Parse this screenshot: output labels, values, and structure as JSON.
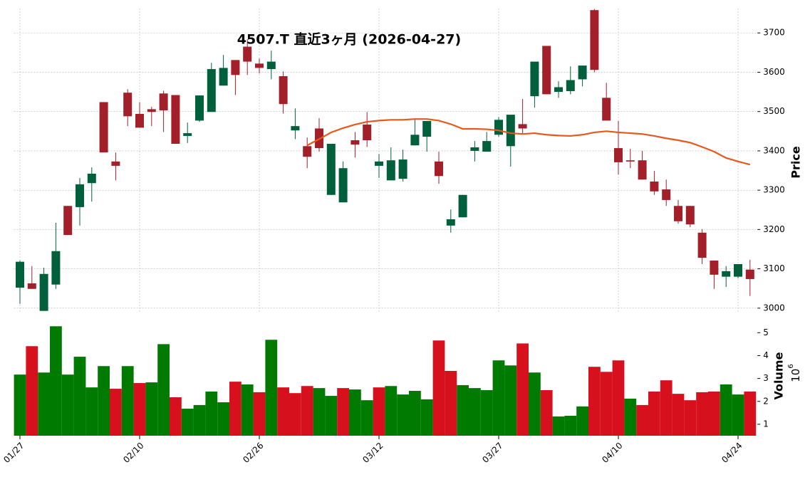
{
  "chart_data": {
    "type": "candlestick",
    "title": "4507.T 直近3ヶ月 (2026-04-27)",
    "categories": [
      "01/27",
      null,
      null,
      null,
      null,
      null,
      null,
      null,
      null,
      null,
      "02/10",
      null,
      null,
      null,
      null,
      null,
      null,
      null,
      null,
      null,
      "02/26",
      null,
      null,
      null,
      null,
      null,
      null,
      null,
      null,
      null,
      "03/12",
      null,
      null,
      null,
      null,
      null,
      null,
      null,
      null,
      null,
      "03/27",
      null,
      null,
      null,
      null,
      null,
      null,
      null,
      null,
      null,
      "04/10",
      null,
      null,
      null,
      null,
      null,
      null,
      null,
      null,
      null,
      "04/24",
      null
    ],
    "open": [
      3052,
      3063,
      2993,
      3060,
      3260,
      3257,
      3318,
      3524,
      3373,
      3548,
      3494,
      3506,
      3546,
      3542,
      3438,
      3477,
      3499,
      3566,
      3631,
      3665,
      3622,
      3608,
      3590,
      3452,
      3412,
      3457,
      3288,
      3269,
      3427,
      3467,
      3362,
      3325,
      3329,
      3414,
      3436,
      3373,
      3210,
      3231,
      3400,
      3398,
      3441,
      3412,
      3468,
      3539,
      3667,
      3550,
      3552,
      3582,
      3758,
      3535,
      3407,
      3376,
      3376,
      3322,
      3302,
      3260,
      3260,
      3192,
      3121,
      3080,
      3080,
      3098
    ],
    "high": [
      3121,
      3107,
      3103,
      3217,
      3260,
      3331,
      3358,
      3524,
      3396,
      3557,
      3524,
      3512,
      3553,
      3542,
      3472,
      3541,
      3624,
      3644,
      3631,
      3684,
      3635,
      3655,
      3602,
      3508,
      3434,
      3483,
      3418,
      3373,
      3448,
      3499,
      3392,
      3409,
      3403,
      3479,
      3476,
      3398,
      3251,
      3288,
      3425,
      3448,
      3486,
      3492,
      3532,
      3627,
      3667,
      3577,
      3615,
      3617,
      3761,
      3573,
      3476,
      3405,
      3400,
      3349,
      3327,
      3275,
      3260,
      3201,
      3121,
      3107,
      3112,
      3123
    ],
    "low": [
      3011,
      3049,
      2993,
      3049,
      3186,
      3210,
      3271,
      3396,
      3325,
      3463,
      3459,
      3463,
      3448,
      3418,
      3420,
      3474,
      3499,
      3566,
      3542,
      3593,
      3597,
      3582,
      3495,
      3430,
      3356,
      3398,
      3288,
      3269,
      3383,
      3410,
      3331,
      3325,
      3322,
      3414,
      3398,
      3316,
      3192,
      3231,
      3373,
      3398,
      3436,
      3360,
      3445,
      3510,
      3544,
      3535,
      3544,
      3564,
      3600,
      3477,
      3340,
      3356,
      3327,
      3288,
      3260,
      3215,
      3206,
      3112,
      3049,
      3054,
      3076,
      3031
    ],
    "close": [
      3118,
      3049,
      3087,
      3145,
      3186,
      3315,
      3342,
      3396,
      3362,
      3488,
      3459,
      3499,
      3503,
      3418,
      3445,
      3541,
      3608,
      3611,
      3593,
      3627,
      3611,
      3627,
      3519,
      3463,
      3385,
      3407,
      3418,
      3356,
      3416,
      3427,
      3373,
      3376,
      3378,
      3441,
      3476,
      3336,
      3226,
      3288,
      3409,
      3425,
      3479,
      3492,
      3457,
      3627,
      3544,
      3562,
      3580,
      3617,
      3606,
      3477,
      3371,
      3373,
      3327,
      3297,
      3275,
      3221,
      3213,
      3128,
      3085,
      3094,
      3112,
      3074
    ],
    "up_color": "#00603c",
    "down_color": "#a31f29",
    "moving_average": {
      "color": "#e8571c",
      "values": [
        null,
        null,
        null,
        null,
        null,
        null,
        null,
        null,
        null,
        null,
        null,
        null,
        null,
        null,
        null,
        null,
        null,
        null,
        null,
        null,
        null,
        null,
        null,
        null,
        3414,
        3430,
        3447,
        3458,
        3467,
        3474,
        3477,
        3479,
        3479,
        3481,
        3481,
        3477,
        3468,
        3456,
        3456,
        3455,
        3452,
        3445,
        3443,
        3445,
        3441,
        3439,
        3438,
        3441,
        3447,
        3450,
        3447,
        3445,
        3443,
        3438,
        3432,
        3427,
        3421,
        3410,
        3398,
        3382,
        3373,
        3365
      ]
    },
    "ylim": [
      2987,
      3762
    ],
    "yticks": [
      3000,
      3100,
      3200,
      3300,
      3400,
      3500,
      3600,
      3700
    ],
    "y_label": "Price",
    "grid": true,
    "volume": [
      3.17,
      4.41,
      3.26,
      5.28,
      3.17,
      3.95,
      2.61,
      3.54,
      2.55,
      3.54,
      2.8,
      2.83,
      4.5,
      2.18,
      1.68,
      1.84,
      2.43,
      1.96,
      2.86,
      2.74,
      2.4,
      4.69,
      2.61,
      2.36,
      2.67,
      2.58,
      2.24,
      2.58,
      2.52,
      2.05,
      2.61,
      2.67,
      2.3,
      2.46,
      2.09,
      4.66,
      3.33,
      2.71,
      2.58,
      2.49,
      3.79,
      3.57,
      4.53,
      3.26,
      2.49,
      1.34,
      1.37,
      1.78,
      3.51,
      3.29,
      3.79,
      2.12,
      1.84,
      2.43,
      2.92,
      2.33,
      2.05,
      2.4,
      2.43,
      2.74,
      2.3,
      2.43
    ],
    "volume_colors": [
      "#007a00",
      "#d7101e",
      "#007a00",
      "#007a00",
      "#007a00",
      "#007a00",
      "#007a00",
      "#007a00",
      "#d7101e",
      "#007a00",
      "#d7101e",
      "#007a00",
      "#007a00",
      "#d7101e",
      "#007a00",
      "#007a00",
      "#007a00",
      "#007a00",
      "#d7101e",
      "#007a00",
      "#d7101e",
      "#007a00",
      "#d7101e",
      "#d7101e",
      "#d7101e",
      "#007a00",
      "#007a00",
      "#d7101e",
      "#007a00",
      "#007a00",
      "#d7101e",
      "#007a00",
      "#007a00",
      "#007a00",
      "#007a00",
      "#d7101e",
      "#d7101e",
      "#007a00",
      "#007a00",
      "#007a00",
      "#007a00",
      "#007a00",
      "#d7101e",
      "#007a00",
      "#d7101e",
      "#007a00",
      "#007a00",
      "#007a00",
      "#d7101e",
      "#d7101e",
      "#d7101e",
      "#007a00",
      "#d7101e",
      "#d7101e",
      "#d7101e",
      "#d7101e",
      "#d7101e",
      "#d7101e",
      "#d7101e",
      "#007a00",
      "#007a00",
      "#d7101e"
    ],
    "y2lim": [
      0.5,
      5.6
    ],
    "y2ticks": [
      1,
      2,
      3,
      4,
      5
    ],
    "y2_label": "Volume",
    "y2_unit_base": "10",
    "y2_unit_exponent": "6"
  }
}
